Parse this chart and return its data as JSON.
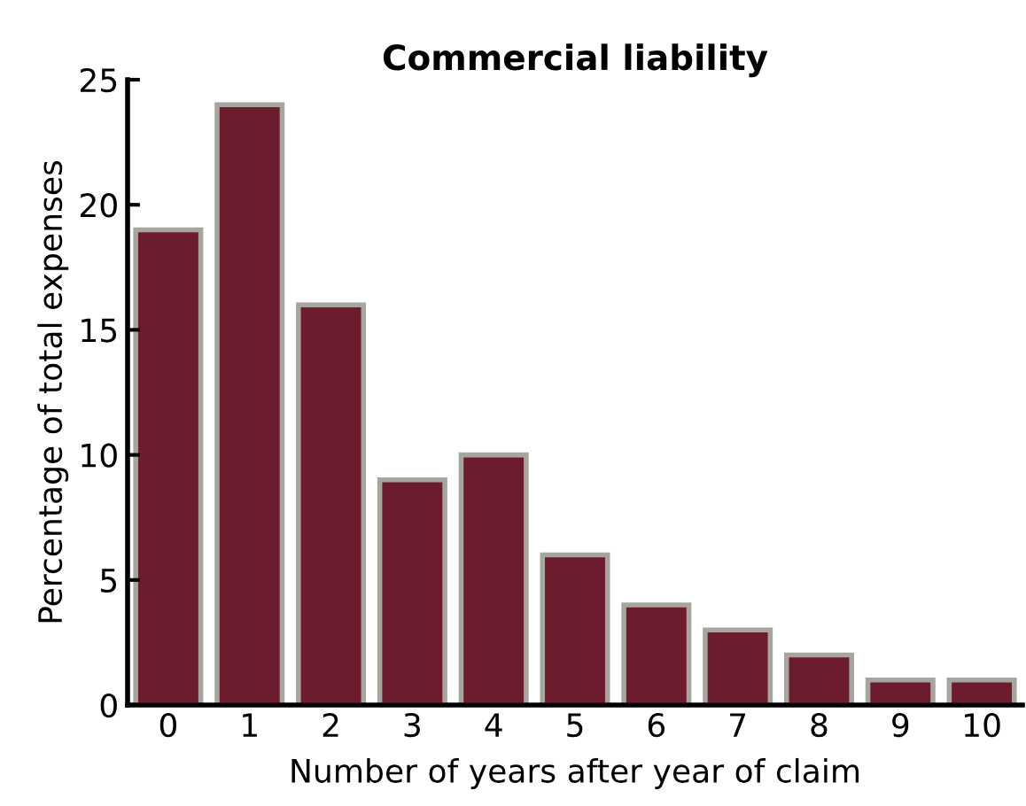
{
  "chart_data": {
    "type": "bar",
    "title": "Commercial liability",
    "xlabel": "Number of years after year of claim",
    "ylabel": "Percentage of total expenses",
    "categories": [
      "0",
      "1",
      "2",
      "3",
      "4",
      "5",
      "6",
      "7",
      "8",
      "9",
      "10"
    ],
    "values": [
      19,
      24,
      16,
      9,
      10,
      6,
      4,
      3,
      2,
      1,
      1
    ],
    "color": "#6d1c2d",
    "ylim": [
      0,
      25
    ],
    "yticks": [
      0,
      5,
      10,
      15,
      20,
      25
    ],
    "grid": false
  }
}
